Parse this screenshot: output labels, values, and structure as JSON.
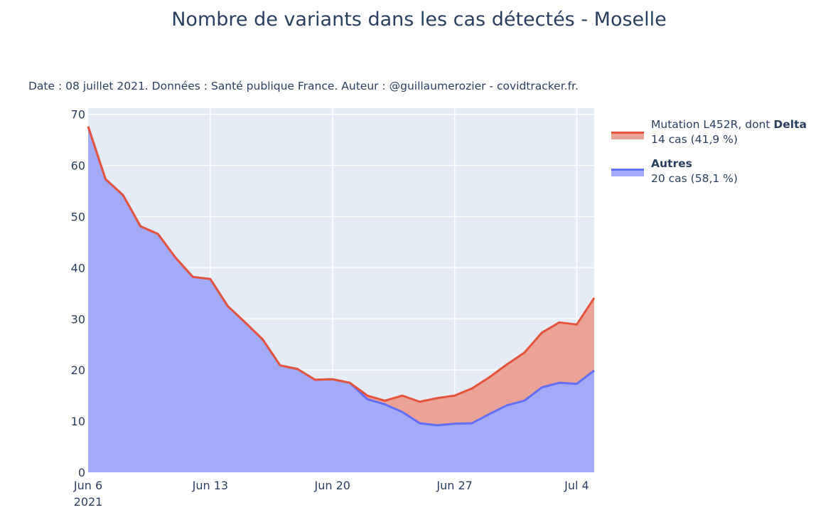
{
  "chart_data": {
    "type": "area",
    "title": "Nombre de variants dans les cas détectés - Moselle",
    "subtitle": "Date : 08 juillet 2021. Données : Santé publique France. Auteur : @guillaumerozier - covidtracker.fr.",
    "x_start": "2021-06-06",
    "x_ticks": [
      "Jun 6",
      "Jun 13",
      "Jun 20",
      "Jun 27",
      "Jul 4"
    ],
    "x_tick_year": "2021",
    "y_ticks": [
      "0",
      "10",
      "20",
      "30",
      "40",
      "50",
      "60",
      "70"
    ],
    "ylim": [
      0,
      71.2
    ],
    "stacked": true,
    "series": [
      {
        "name": "Autres",
        "legend_bold": "Autres",
        "legend_sub": "20 cas (58,1 %)",
        "line_color": "#636efa",
        "fill_color": "#a3abf6",
        "values": [
          67.6,
          57.3,
          54.2,
          48.1,
          46.6,
          42,
          38.2,
          37.8,
          32.5,
          29.3,
          26,
          20.9,
          20.2,
          18.1,
          18.2,
          17.5,
          14.3,
          13.3,
          11.8,
          9.6,
          9.2,
          9.5,
          9.6,
          11.4,
          13.1,
          14,
          16.6,
          17.5,
          17.3,
          19.9
        ]
      },
      {
        "name": "Mutation L452R, dont Delta",
        "legend_plain": "Mutation L452R, dont ",
        "legend_bold": "Delta",
        "legend_sub": "14 cas (41,9 %)",
        "line_color": "#e5533c",
        "fill_color": "#eba397",
        "values": [
          0,
          0,
          0,
          0,
          0,
          0,
          0,
          0,
          0,
          0,
          0,
          0,
          0,
          0,
          0,
          0,
          0.7,
          0.7,
          3.2,
          4.2,
          5.3,
          5.5,
          6.8,
          7.2,
          8,
          9.4,
          10.7,
          11.8,
          11.6,
          14.2
        ]
      }
    ]
  }
}
